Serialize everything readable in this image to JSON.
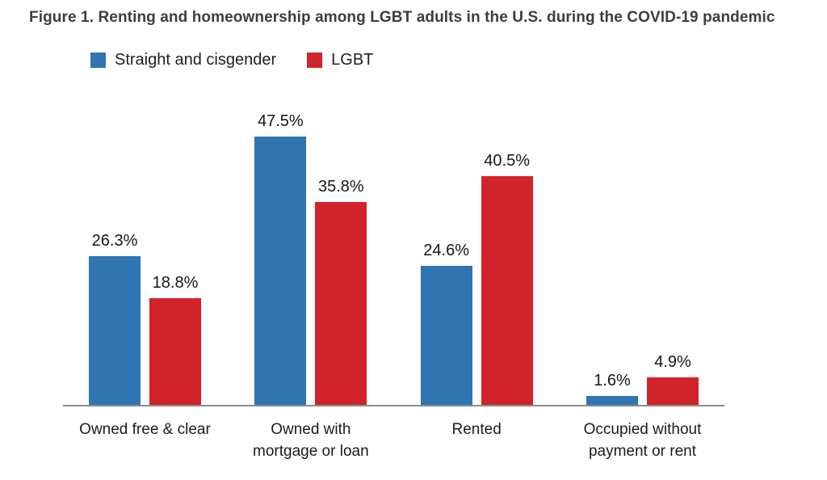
{
  "figure": {
    "title": "Figure 1. Renting and homeownership among LGBT adults in the U.S. during the COVID-19 pandemic"
  },
  "legend": [
    {
      "label": "Straight and cisgender",
      "color": "#2E75B1"
    },
    {
      "label": "LGBT",
      "color": "#D2232A"
    }
  ],
  "chart_data": {
    "type": "bar",
    "title": "Figure 1. Renting and homeownership among LGBT adults in the U.S. during the COVID-19 pandemic",
    "categories": [
      "Owned free & clear",
      "Owned with\nmortgage or loan",
      "Rented",
      "Occupied without\npayment or rent"
    ],
    "series": [
      {
        "name": "Straight and cisgender",
        "color": "#2E75B1",
        "values": [
          26.3,
          47.5,
          24.6,
          1.6
        ]
      },
      {
        "name": "LGBT",
        "color": "#D2232A",
        "values": [
          18.8,
          35.8,
          40.5,
          4.9
        ]
      }
    ],
    "value_labels": [
      [
        "26.3%",
        "47.5%",
        "24.6%",
        "1.6%"
      ],
      [
        "18.8%",
        "35.8%",
        "40.5%",
        "4.9%"
      ]
    ],
    "unit": "%",
    "xlabel": "",
    "ylabel": "",
    "ylim": [
      0,
      58
    ],
    "grid": false,
    "data_labels": true,
    "legend_position": "top-left",
    "axis_line_color": "#8c8c8c"
  }
}
